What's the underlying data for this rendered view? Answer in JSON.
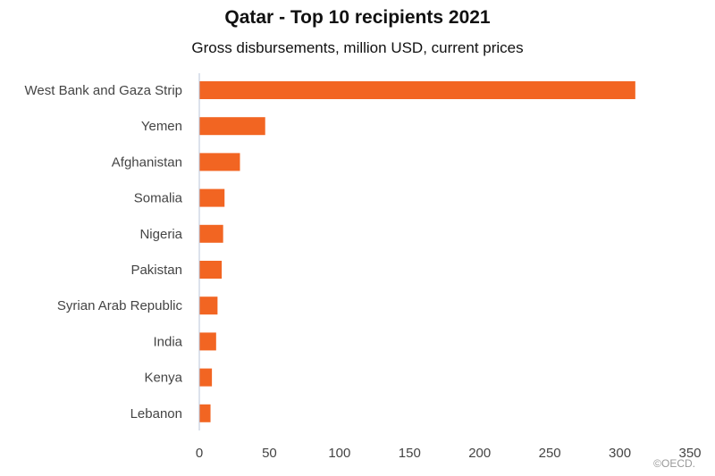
{
  "chart_data": {
    "type": "bar",
    "orientation": "horizontal",
    "title": "Qatar - Top 10 recipients 2021",
    "subtitle": "Gross disbursements, million USD, current prices",
    "categories": [
      "West Bank and Gaza Strip",
      "Yemen",
      "Afghanistan",
      "Somalia",
      "Nigeria",
      "Pakistan",
      "Syrian Arab Republic",
      "India",
      "Kenya",
      "Lebanon"
    ],
    "values": [
      311,
      47,
      29,
      18,
      17,
      16,
      13,
      12,
      9,
      8
    ],
    "xlim": [
      0,
      350
    ],
    "xticks": [
      "0",
      "50",
      "100",
      "150",
      "200",
      "250",
      "300",
      "350"
    ],
    "grid": false,
    "bar_color": "#f26522",
    "axis_color": "#b8c4d8"
  },
  "credit": "©OECD."
}
